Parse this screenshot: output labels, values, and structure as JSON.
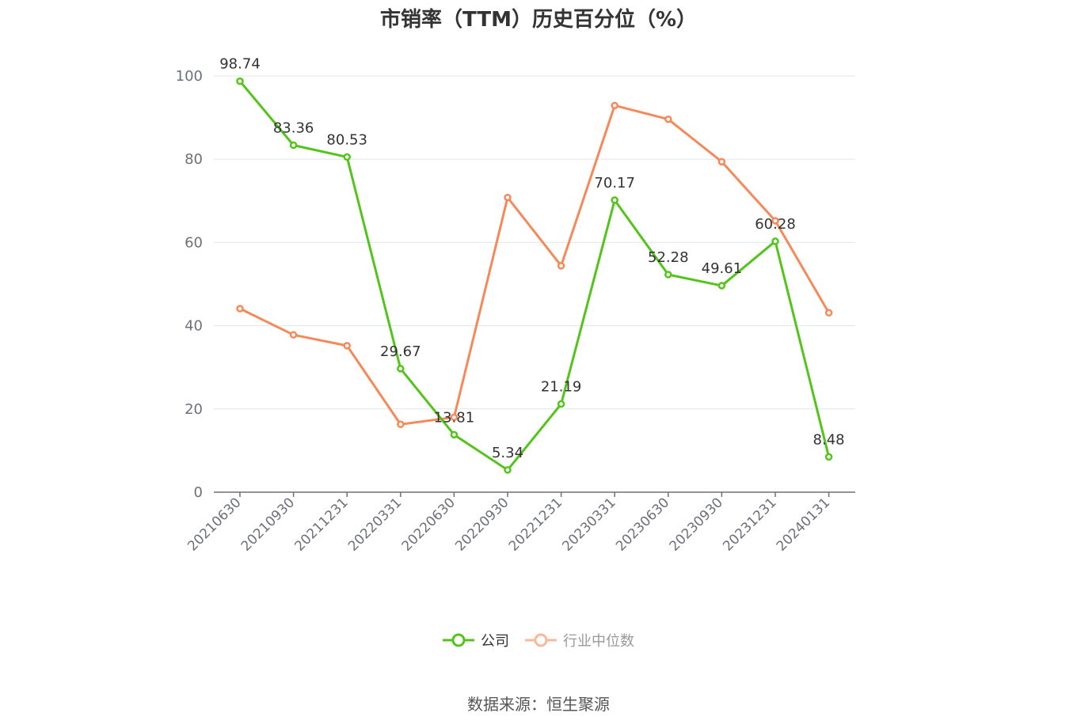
{
  "chart_data": {
    "type": "line",
    "title": "市销率（TTM）历史百分位（%）",
    "categories": [
      "20210630",
      "20210930",
      "20211231",
      "20220331",
      "20220630",
      "20220930",
      "20221231",
      "20230331",
      "20230630",
      "20230930",
      "20231231",
      "20240131"
    ],
    "series": [
      {
        "name": "公司",
        "color": "#52c41a",
        "values": [
          98.74,
          83.36,
          80.53,
          29.67,
          13.81,
          5.34,
          21.19,
          70.17,
          52.28,
          49.61,
          60.28,
          8.48
        ],
        "show_labels": true
      },
      {
        "name": "行业中位数",
        "color": "#f5895a",
        "values": [
          44.1,
          37.8,
          35.2,
          16.3,
          18.0,
          70.8,
          54.4,
          92.9,
          89.6,
          79.4,
          65.2,
          43.1
        ],
        "show_labels": false
      }
    ],
    "yticks": [
      0,
      20,
      40,
      60,
      80,
      100
    ],
    "ylim": [
      0,
      100
    ],
    "grid": true,
    "legend_position": "bottom"
  },
  "source_text": "数据来源：恒生聚源"
}
